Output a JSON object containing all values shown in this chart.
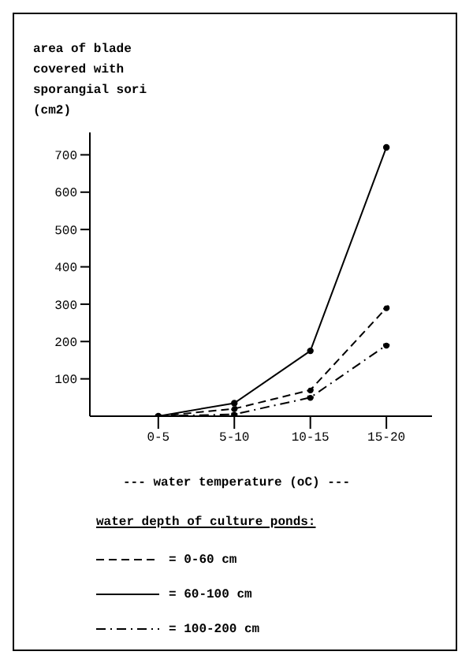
{
  "chart_data": {
    "type": "line",
    "ylabel": "area of blade covered with sporangial sori (cm2)",
    "xlabel": "--- water temperature (oC) ---",
    "legend_title": "water depth of culture ponds:",
    "categories": [
      "0-5",
      "5-10",
      "10-15",
      "15-20"
    ],
    "series": [
      {
        "name": "= 0-60 cm",
        "color": "#000000",
        "line_style": "dashed",
        "values": [
          0,
          20,
          70,
          290
        ]
      },
      {
        "name": "= 60-100 cm",
        "color": "#000000",
        "line_style": "solid",
        "values": [
          0,
          35,
          175,
          720
        ]
      },
      {
        "name": "= 100-200 cm",
        "color": "#000000",
        "line_style": "dashdot",
        "values": [
          0,
          5,
          50,
          190
        ]
      }
    ],
    "ylim": [
      0,
      760
    ],
    "yticks": [
      100,
      200,
      300,
      400,
      500,
      600,
      700
    ],
    "legend": "bottom",
    "marker": "circle"
  }
}
